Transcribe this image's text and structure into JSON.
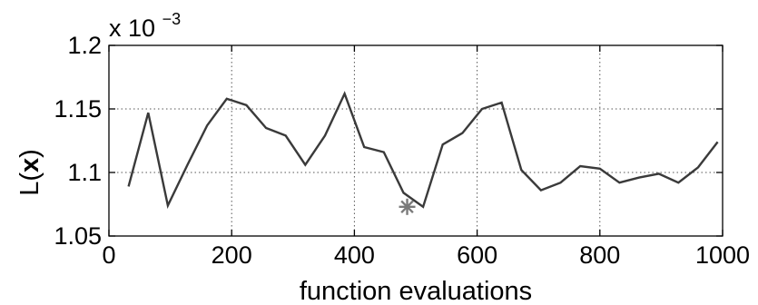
{
  "chart_data": {
    "type": "line",
    "title": "",
    "xlabel": "function evaluations",
    "ylabel": "L(x)",
    "ylabel_parts": [
      "L(",
      "x",
      ")"
    ],
    "y_scale_factor": {
      "base": "x 10",
      "exponent": "−3"
    },
    "xlim": [
      0,
      1000
    ],
    "ylim": [
      1.05,
      1.2
    ],
    "xticks": [
      0,
      200,
      400,
      600,
      800,
      1000
    ],
    "xtick_labels": [
      "0",
      "200",
      "400",
      "600",
      "800",
      "1000"
    ],
    "yticks": [
      1.05,
      1.1,
      1.15,
      1.2
    ],
    "ytick_labels": [
      "1.05",
      "1.1",
      "1.15",
      "1.2"
    ],
    "grid": true,
    "series": [
      {
        "color": "#3a3a3a",
        "x": [
          32,
          64,
          96,
          128,
          160,
          192,
          224,
          256,
          288,
          320,
          352,
          384,
          416,
          448,
          480,
          512,
          544,
          576,
          608,
          640,
          672,
          704,
          736,
          768,
          800,
          832,
          864,
          896,
          928,
          960,
          992
        ],
        "y": [
          1.089,
          1.147,
          1.074,
          1.106,
          1.137,
          1.158,
          1.153,
          1.135,
          1.129,
          1.106,
          1.129,
          1.162,
          1.12,
          1.116,
          1.084,
          1.073,
          1.122,
          1.131,
          1.15,
          1.155,
          1.102,
          1.086,
          1.092,
          1.105,
          1.103,
          1.092,
          1.096,
          1.099,
          1.092,
          1.104,
          1.124
        ]
      }
    ],
    "markers": [
      {
        "symbol": "asterisk",
        "color": "#7a7a7a",
        "x": 486,
        "y": 1.073
      }
    ]
  }
}
